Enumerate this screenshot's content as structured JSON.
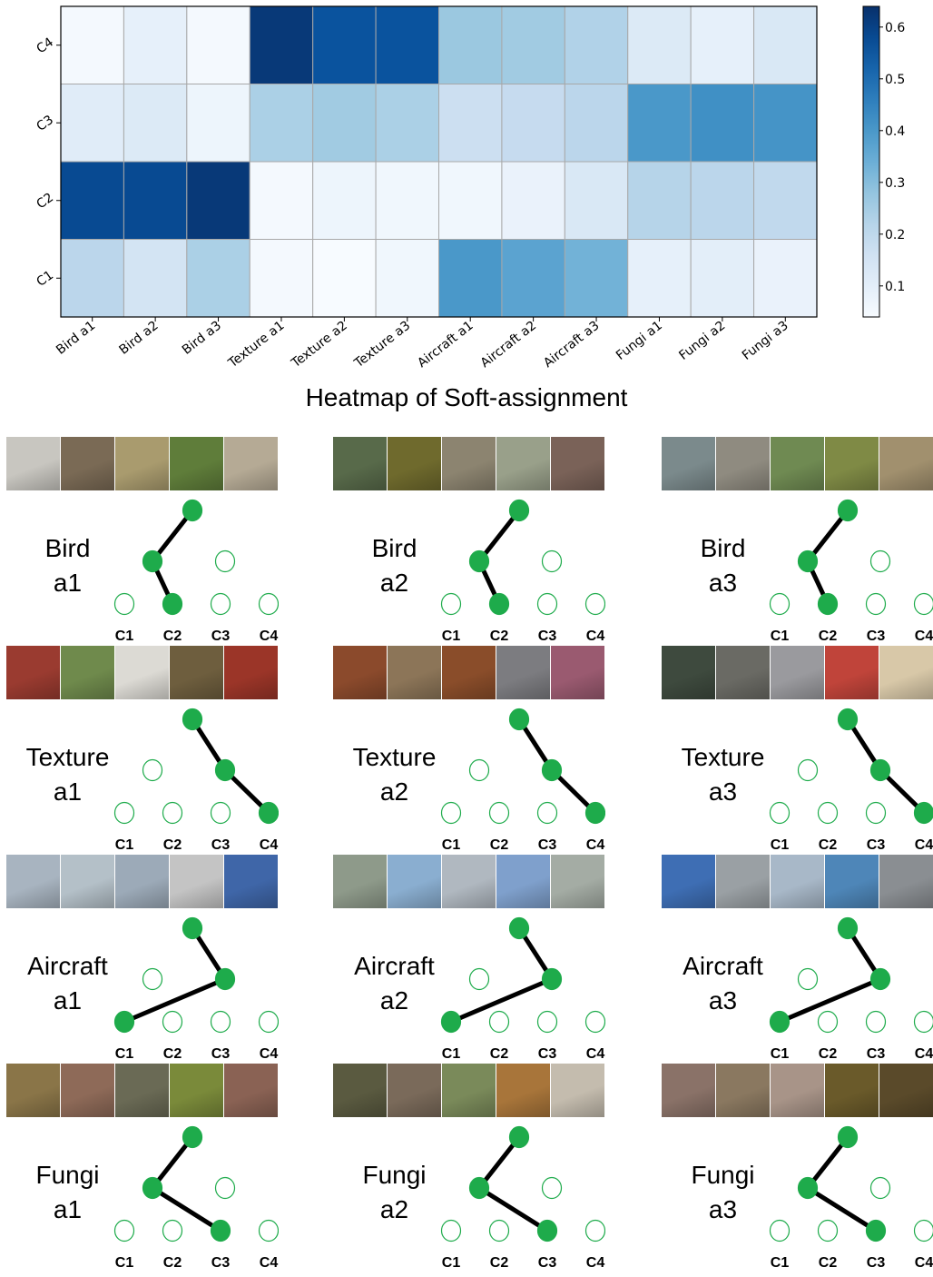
{
  "caption": "Heatmap of Soft-assignment",
  "chart_data": {
    "type": "heatmap",
    "rows": [
      "C4",
      "C3",
      "C2",
      "C1"
    ],
    "columns": [
      "Bird a1",
      "Bird a2",
      "Bird a3",
      "Texture a1",
      "Texture a2",
      "Texture a3",
      "Aircraft a1",
      "Aircraft a2",
      "Aircraft a3",
      "Fungi a1",
      "Fungi a2",
      "Fungi a3"
    ],
    "values": [
      [
        0.05,
        0.09,
        0.05,
        0.62,
        0.56,
        0.56,
        0.27,
        0.26,
        0.23,
        0.12,
        0.09,
        0.13
      ],
      [
        0.11,
        0.12,
        0.07,
        0.24,
        0.26,
        0.24,
        0.17,
        0.19,
        0.21,
        0.4,
        0.42,
        0.41
      ],
      [
        0.58,
        0.58,
        0.62,
        0.05,
        0.07,
        0.06,
        0.06,
        0.08,
        0.13,
        0.22,
        0.21,
        0.2
      ],
      [
        0.21,
        0.15,
        0.24,
        0.05,
        0.04,
        0.06,
        0.4,
        0.37,
        0.33,
        0.09,
        0.1,
        0.08
      ]
    ],
    "colorbar_ticks": [
      "0.1",
      "0.2",
      "0.3",
      "0.4",
      "0.5",
      "0.6"
    ],
    "vmin": 0.04,
    "vmax": 0.64,
    "colormap": "Blues"
  },
  "colors": {
    "node": "#1eab4b",
    "edge": "#000000"
  },
  "leaf_labels": [
    "C1",
    "C2",
    "C3",
    "C4"
  ],
  "panels": [
    {
      "name": "bird-a1",
      "l1": "Bird",
      "l2": "a1",
      "mid": "left",
      "leaf": 1,
      "thumbs": [
        "#c8c6c0",
        "#7a6a55",
        "#a99b6e",
        "#5f7d3a",
        "#b5aa95"
      ]
    },
    {
      "name": "bird-a2",
      "l1": "Bird",
      "l2": "a2",
      "mid": "left",
      "leaf": 1,
      "thumbs": [
        "#586a4a",
        "#6f6a2d",
        "#8c8470",
        "#99a08a",
        "#7a6258"
      ]
    },
    {
      "name": "bird-a3",
      "l1": "Bird",
      "l2": "a3",
      "mid": "left",
      "leaf": 1,
      "thumbs": [
        "#7b8a8c",
        "#8f8b80",
        "#6f8a52",
        "#7f8a45",
        "#a1906e"
      ]
    },
    {
      "name": "texture-a1",
      "l1": "Texture",
      "l2": "a1",
      "mid": "right",
      "leaf": 3,
      "thumbs": [
        "#9a3b30",
        "#6f8a4c",
        "#dcdad4",
        "#6e5e3e",
        "#9b3528"
      ]
    },
    {
      "name": "texture-a2",
      "l1": "Texture",
      "l2": "a2",
      "mid": "right",
      "leaf": 3,
      "thumbs": [
        "#8b4a2c",
        "#8c7558",
        "#8a4d2a",
        "#7c7c80",
        "#9a5a70"
      ]
    },
    {
      "name": "texture-a3",
      "l1": "Texture",
      "l2": "a3",
      "mid": "right",
      "leaf": 3,
      "thumbs": [
        "#3e4a3e",
        "#6a6a64",
        "#9a9a9e",
        "#c0443a",
        "#d8c8a8"
      ]
    },
    {
      "name": "aircraft-a1",
      "l1": "Aircraft",
      "l2": "a1",
      "mid": "right",
      "leaf": 0,
      "thumbs": [
        "#a8b4c0",
        "#b4c0c8",
        "#9caab8",
        "#c4c4c4",
        "#3f66a8"
      ]
    },
    {
      "name": "aircraft-a2",
      "l1": "Aircraft",
      "l2": "a2",
      "mid": "right",
      "leaf": 0,
      "thumbs": [
        "#8e9a8a",
        "#8aaed0",
        "#b0b8c0",
        "#7fa0cc",
        "#a4aca4"
      ]
    },
    {
      "name": "aircraft-a3",
      "l1": "Aircraft",
      "l2": "a3",
      "mid": "right",
      "leaf": 0,
      "thumbs": [
        "#3e6eb4",
        "#9aa0a4",
        "#a8b8c8",
        "#4e86b8",
        "#8a8e92"
      ]
    },
    {
      "name": "fungi-a1",
      "l1": "Fungi",
      "l2": "a1",
      "mid": "left",
      "leaf": 2,
      "thumbs": [
        "#8a7548",
        "#8e6a58",
        "#6a6a55",
        "#7a8a3a",
        "#8a6254"
      ]
    },
    {
      "name": "fungi-a2",
      "l1": "Fungi",
      "l2": "a2",
      "mid": "left",
      "leaf": 2,
      "thumbs": [
        "#5a5a40",
        "#7a6a5a",
        "#7a8a5a",
        "#a8753a",
        "#c4bcae"
      ]
    },
    {
      "name": "fungi-a3",
      "l1": "Fungi",
      "l2": "a3",
      "mid": "left",
      "leaf": 2,
      "thumbs": [
        "#8a7268",
        "#8a7860",
        "#a89488",
        "#6a5a2a",
        "#5a4a2a"
      ]
    }
  ]
}
